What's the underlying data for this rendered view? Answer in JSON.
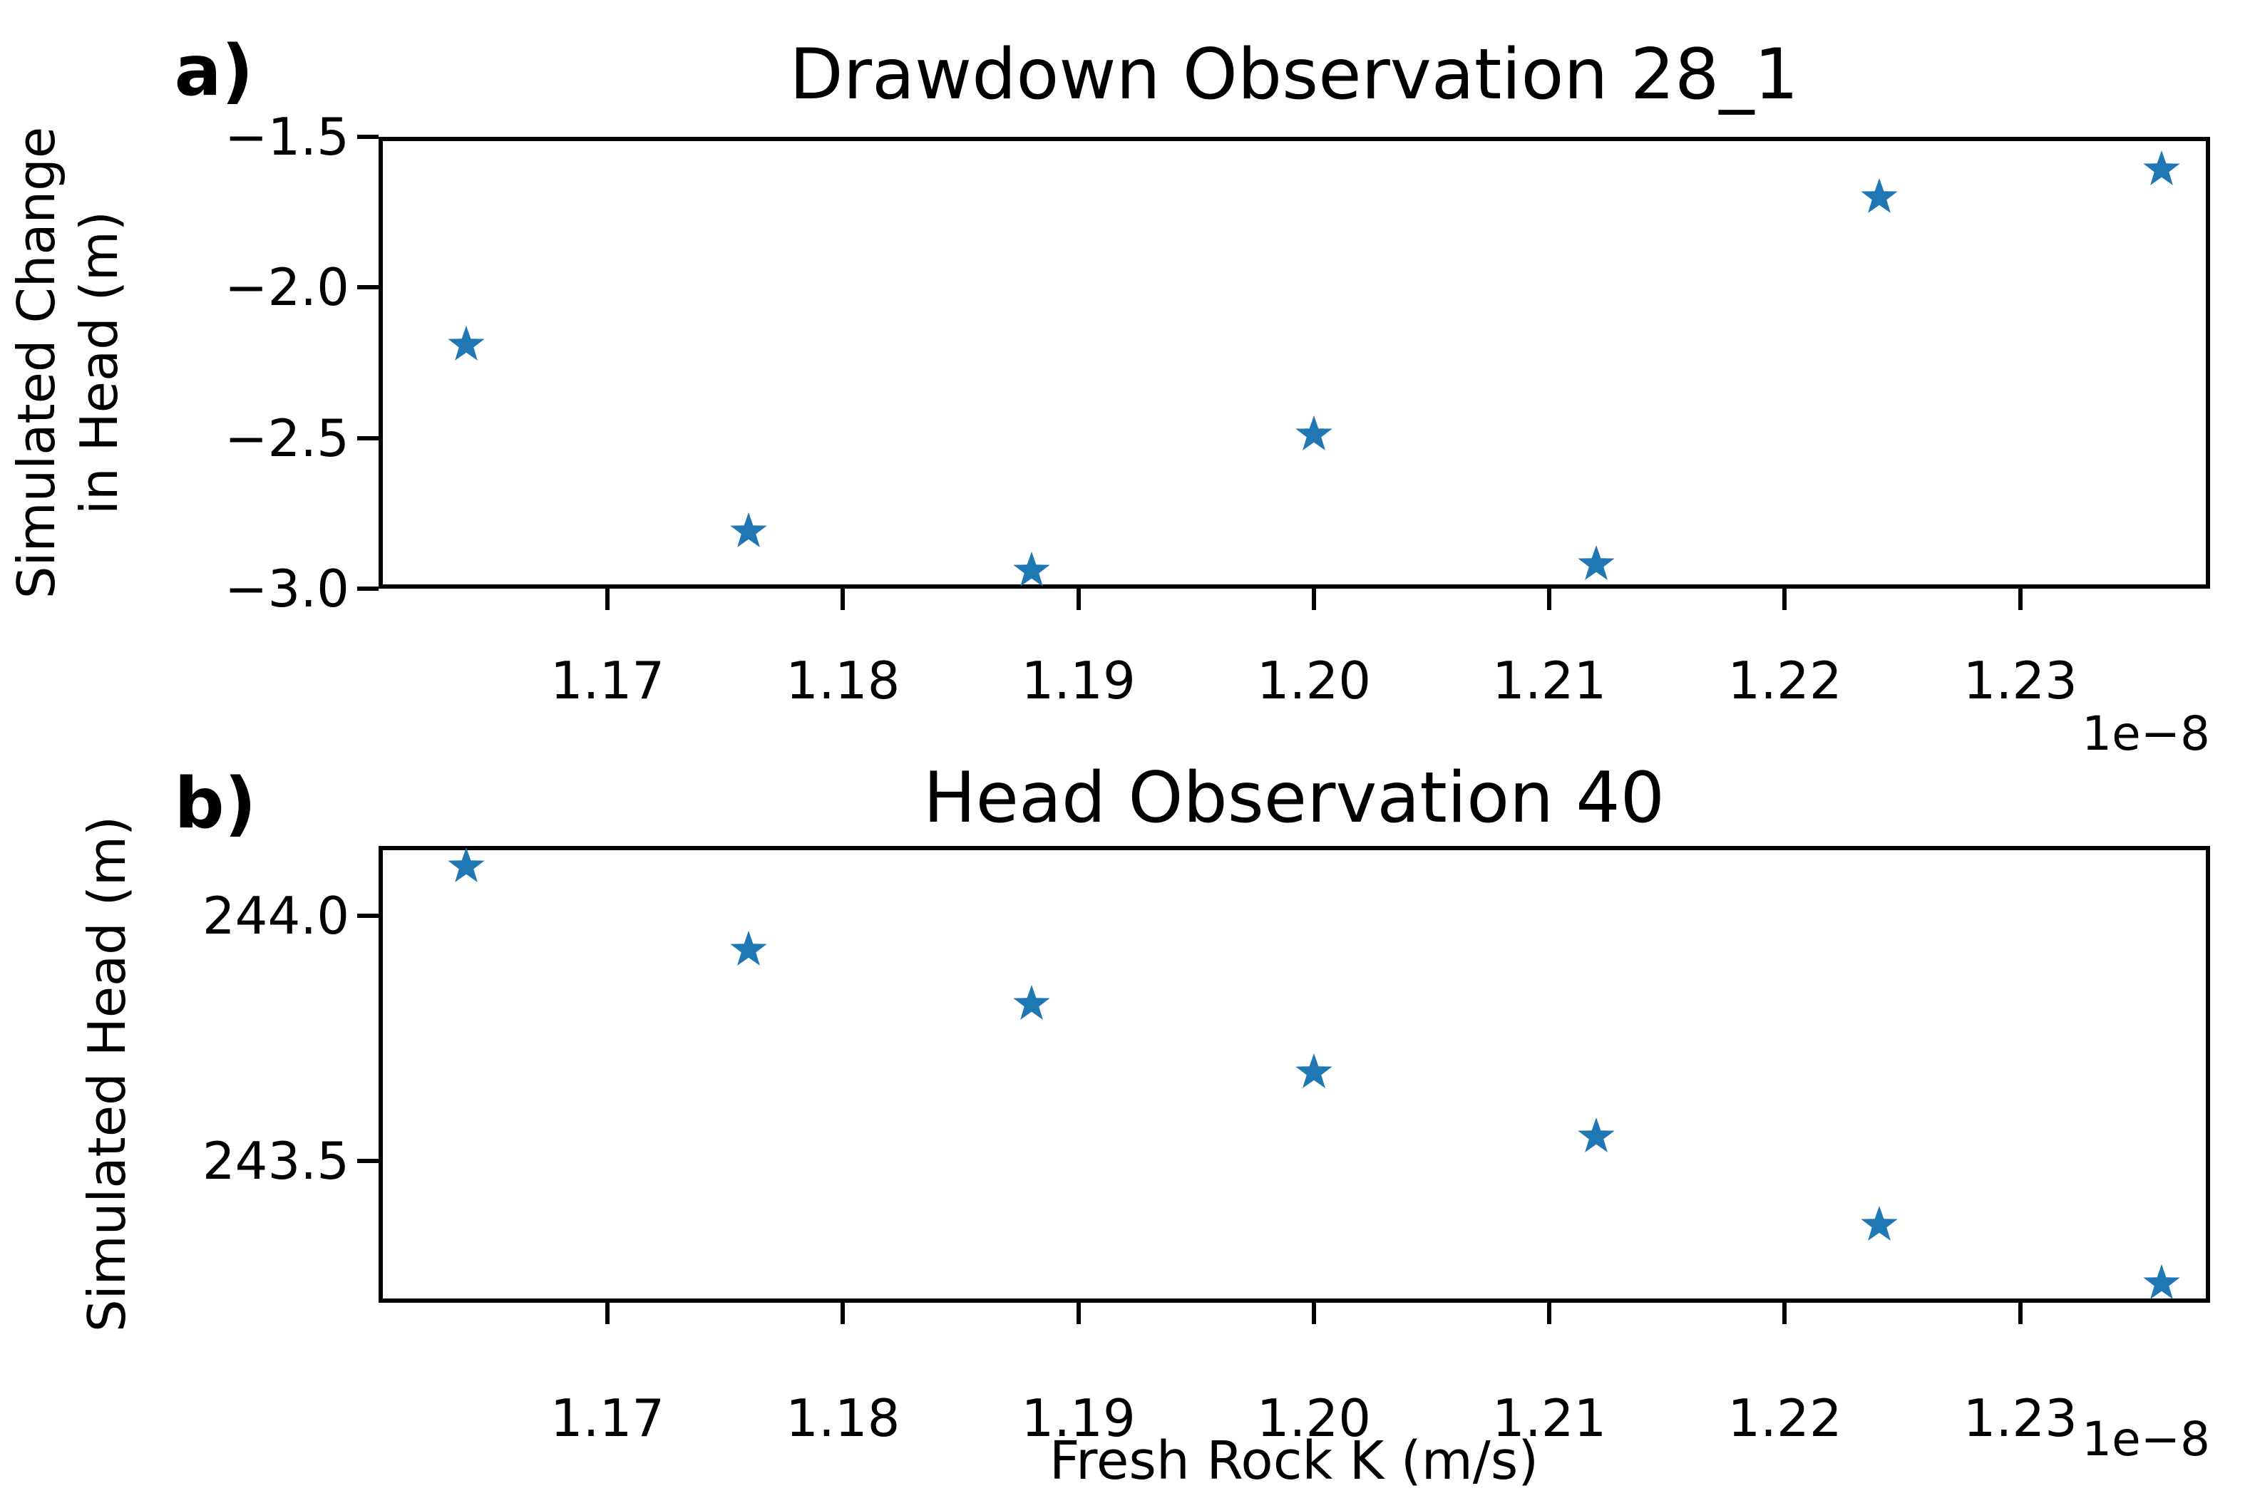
{
  "figure": {
    "background": "#ffffff",
    "marker_color": "#1f77b4",
    "text_color": "#000000"
  },
  "panel_a": {
    "panel_label": "a)",
    "title": "Drawdown Observation 28_1",
    "ylabel_line1": "Simulated Change",
    "ylabel_line2": "in Head (m)",
    "offset_text": "1e−8",
    "ytick_labels": [
      "−1.5",
      "−2.0",
      "−2.5",
      "−3.0"
    ],
    "xtick_labels": [
      "1.17",
      "1.18",
      "1.19",
      "1.20",
      "1.21",
      "1.22",
      "1.23"
    ]
  },
  "panel_b": {
    "panel_label": "b)",
    "title": "Head Observation 40",
    "ylabel": "Simulated Head (m)",
    "xlabel": "Fresh Rock K (m/s)",
    "offset_text": "1e−8",
    "ytick_labels": [
      "244.0",
      "243.5"
    ],
    "xtick_labels": [
      "1.17",
      "1.18",
      "1.19",
      "1.20",
      "1.21",
      "1.22",
      "1.23"
    ]
  },
  "chart_data": [
    {
      "type": "scatter",
      "panel": "a",
      "title": "Drawdown Observation 28_1",
      "marker": "star",
      "color": "#1f77b4",
      "x_scale_note": "x values are in units of 1e-8 m/s",
      "x": [
        1.164,
        1.176,
        1.188,
        1.2,
        1.212,
        1.224,
        1.236
      ],
      "y": [
        -2.19,
        -2.81,
        -2.94,
        -2.49,
        -2.92,
        -1.7,
        -1.61
      ],
      "xlabel": "",
      "ylabel": "Simulated Change in Head (m)",
      "xlim": [
        1.16028,
        1.23806
      ],
      "ylim": [
        -3.0,
        -1.5
      ],
      "xticks": [
        1.17,
        1.18,
        1.19,
        1.2,
        1.21,
        1.22,
        1.23
      ],
      "yticks": [
        -1.5,
        -2.0,
        -2.5,
        -3.0
      ],
      "grid": false,
      "legend": null
    },
    {
      "type": "scatter",
      "panel": "b",
      "title": "Head Observation 40",
      "marker": "star",
      "color": "#1f77b4",
      "x_scale_note": "x values are in units of 1e-8 m/s",
      "x": [
        1.164,
        1.176,
        1.188,
        1.2,
        1.212,
        1.224,
        1.236
      ],
      "y": [
        244.1,
        243.93,
        243.82,
        243.68,
        243.55,
        243.37,
        243.25
      ],
      "xlabel": "Fresh Rock K (m/s)",
      "ylabel": "Simulated Head (m)",
      "xlim": [
        1.16028,
        1.23806
      ],
      "ylim": [
        243.211,
        244.142
      ],
      "xticks": [
        1.17,
        1.18,
        1.19,
        1.2,
        1.21,
        1.22,
        1.23
      ],
      "yticks": [
        244.0,
        243.5
      ],
      "grid": false,
      "legend": null
    }
  ]
}
